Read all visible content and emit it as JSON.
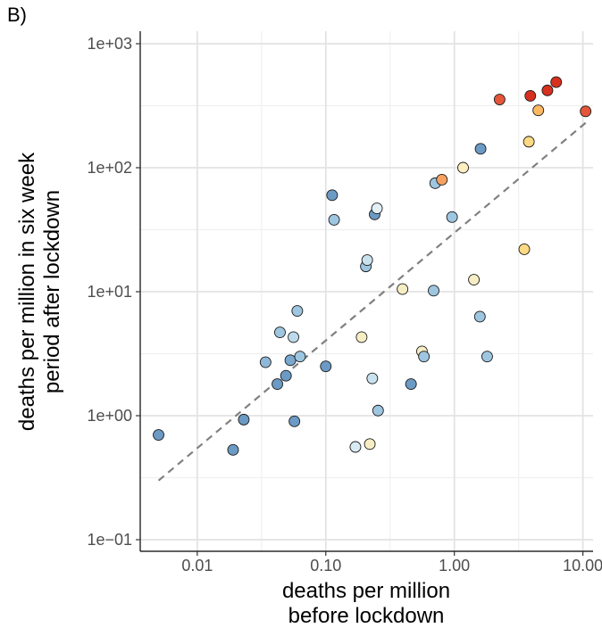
{
  "chart_data": {
    "type": "scatter",
    "panel_label": "B)",
    "xlabel": [
      "deaths per million",
      "before lockdown"
    ],
    "ylabel": [
      "deaths per million in six week",
      "period after lockdown"
    ],
    "x_scale": "log10",
    "y_scale": "log10",
    "xlim": [
      0.0036,
      12
    ],
    "ylim": [
      0.1,
      1000
    ],
    "x_ticks": [
      {
        "value": 0.01,
        "label": "0.01"
      },
      {
        "value": 0.1,
        "label": "0.10"
      },
      {
        "value": 1,
        "label": "1.00"
      },
      {
        "value": 10,
        "label": "10.00"
      }
    ],
    "y_ticks": [
      {
        "value": 0.1,
        "label": "1e−01"
      },
      {
        "value": 1,
        "label": "1e+00"
      },
      {
        "value": 10,
        "label": "1e+01"
      },
      {
        "value": 100,
        "label": "1e+02"
      },
      {
        "value": 1000,
        "label": "1e+03"
      }
    ],
    "grid": true,
    "reference_line": {
      "style": "dashed",
      "color": "#808080",
      "from": [
        0.005,
        0.3
      ],
      "to": [
        10.5,
        230
      ]
    },
    "points": [
      {
        "x": 0.005,
        "y": 0.7,
        "color": "#6b9ac4"
      },
      {
        "x": 0.019,
        "y": 0.53,
        "color": "#6b9ac4"
      },
      {
        "x": 0.023,
        "y": 0.93,
        "color": "#6b9ac4"
      },
      {
        "x": 0.034,
        "y": 2.7,
        "color": "#8fb8d8"
      },
      {
        "x": 0.042,
        "y": 1.8,
        "color": "#6b9ac4"
      },
      {
        "x": 0.044,
        "y": 4.7,
        "color": "#9ec6e0"
      },
      {
        "x": 0.049,
        "y": 2.1,
        "color": "#6b9ac4"
      },
      {
        "x": 0.053,
        "y": 2.8,
        "color": "#7aa8cf"
      },
      {
        "x": 0.056,
        "y": 4.3,
        "color": "#bcdaea"
      },
      {
        "x": 0.057,
        "y": 0.9,
        "color": "#6b9ac4"
      },
      {
        "x": 0.06,
        "y": 7.0,
        "color": "#9ec6e0"
      },
      {
        "x": 0.063,
        "y": 3.0,
        "color": "#9ec6e0"
      },
      {
        "x": 0.1,
        "y": 2.5,
        "color": "#6b9ac4"
      },
      {
        "x": 0.112,
        "y": 60,
        "color": "#6b9ac4"
      },
      {
        "x": 0.116,
        "y": 38,
        "color": "#9ec6e0"
      },
      {
        "x": 0.17,
        "y": 0.56,
        "color": "#d9ebf2"
      },
      {
        "x": 0.19,
        "y": 4.3,
        "color": "#f7edc4"
      },
      {
        "x": 0.205,
        "y": 16,
        "color": "#9ec6e0"
      },
      {
        "x": 0.21,
        "y": 18,
        "color": "#c9e2ee"
      },
      {
        "x": 0.22,
        "y": 0.59,
        "color": "#f7edc4"
      },
      {
        "x": 0.23,
        "y": 2.0,
        "color": "#c9e2ee"
      },
      {
        "x": 0.24,
        "y": 42,
        "color": "#6b9ac4"
      },
      {
        "x": 0.25,
        "y": 47,
        "color": "#e2f0f6"
      },
      {
        "x": 0.255,
        "y": 1.1,
        "color": "#9ec6e0"
      },
      {
        "x": 0.395,
        "y": 10.5,
        "color": "#f7edc4"
      },
      {
        "x": 0.46,
        "y": 1.8,
        "color": "#6b9ac4"
      },
      {
        "x": 0.56,
        "y": 3.3,
        "color": "#f7edc4"
      },
      {
        "x": 0.58,
        "y": 3.0,
        "color": "#9ec6e0"
      },
      {
        "x": 0.69,
        "y": 10.2,
        "color": "#9ec6e0"
      },
      {
        "x": 0.71,
        "y": 75,
        "color": "#9ec6e0"
      },
      {
        "x": 0.8,
        "y": 80,
        "color": "#f5a160"
      },
      {
        "x": 0.96,
        "y": 40,
        "color": "#9ec6e0"
      },
      {
        "x": 1.17,
        "y": 100,
        "color": "#fdefc0"
      },
      {
        "x": 1.42,
        "y": 12.5,
        "color": "#f7edc4"
      },
      {
        "x": 1.58,
        "y": 6.3,
        "color": "#9ec6e0"
      },
      {
        "x": 1.6,
        "y": 142,
        "color": "#6b9ac4"
      },
      {
        "x": 1.8,
        "y": 3.0,
        "color": "#9ec6e0"
      },
      {
        "x": 2.25,
        "y": 355,
        "color": "#e4553a"
      },
      {
        "x": 3.5,
        "y": 22,
        "color": "#fcd983"
      },
      {
        "x": 3.8,
        "y": 162,
        "color": "#fdd983"
      },
      {
        "x": 3.9,
        "y": 380,
        "color": "#d7301f"
      },
      {
        "x": 4.5,
        "y": 290,
        "color": "#fdb863"
      },
      {
        "x": 5.3,
        "y": 420,
        "color": "#d7301f"
      },
      {
        "x": 6.2,
        "y": 490,
        "color": "#d7301f"
      },
      {
        "x": 10.5,
        "y": 285,
        "color": "#e4553a"
      }
    ]
  }
}
